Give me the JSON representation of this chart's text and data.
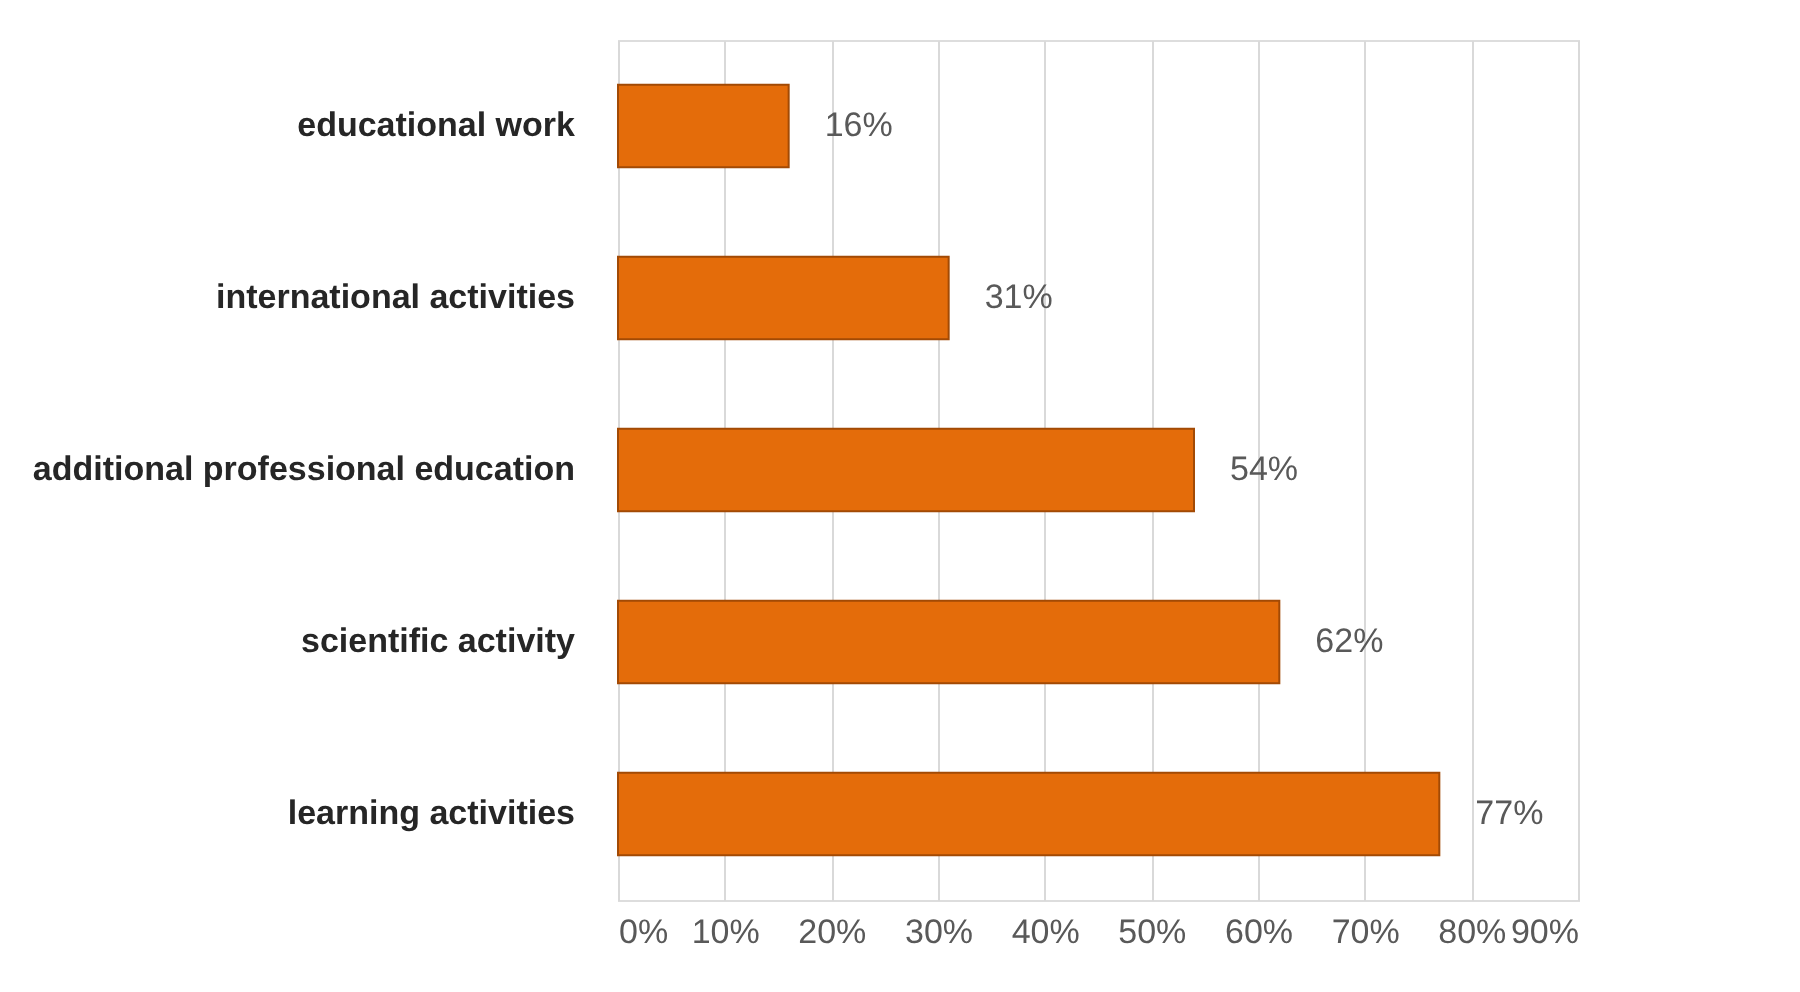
{
  "chart_data": {
    "type": "bar",
    "orientation": "horizontal",
    "categories": [
      "educational work",
      "international activities",
      "additional professional education",
      "scientific activity",
      "learning activities"
    ],
    "values": [
      16,
      31,
      54,
      62,
      77
    ],
    "value_labels": [
      "16%",
      "31%",
      "54%",
      "62%",
      "77%"
    ],
    "color": "#e46c0a",
    "xlim": [
      0,
      90
    ],
    "xticks": [
      {
        "value": 0,
        "label": "0%"
      },
      {
        "value": 10,
        "label": "10%"
      },
      {
        "value": 20,
        "label": "20%"
      },
      {
        "value": 30,
        "label": "30%"
      },
      {
        "value": 40,
        "label": "40%"
      },
      {
        "value": 50,
        "label": "50%"
      },
      {
        "value": 60,
        "label": "60%"
      },
      {
        "value": 70,
        "label": "70%"
      },
      {
        "value": 80,
        "label": "80%"
      },
      {
        "value": 90,
        "label": "90%"
      }
    ],
    "grid": "x"
  }
}
